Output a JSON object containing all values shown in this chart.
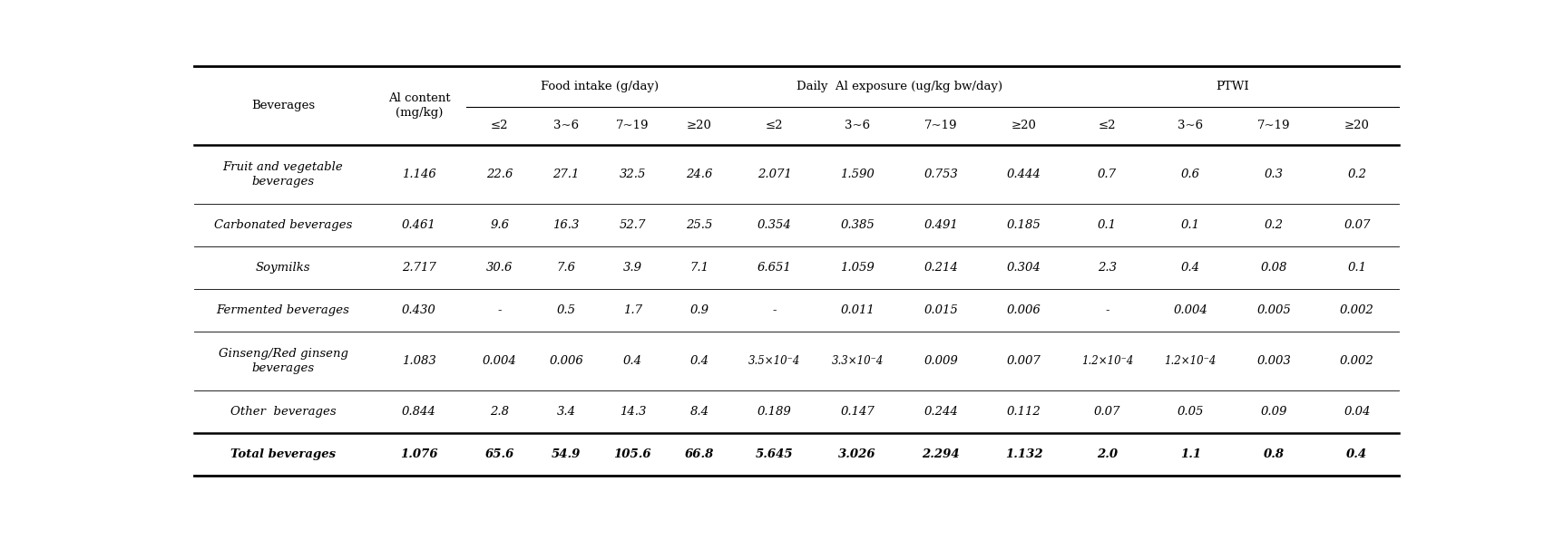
{
  "figsize": [
    17.13,
    6.06
  ],
  "dpi": 100,
  "col_widths": [
    1.6,
    0.85,
    0.6,
    0.6,
    0.6,
    0.6,
    0.75,
    0.75,
    0.75,
    0.75,
    0.75,
    0.75,
    0.75,
    0.75
  ],
  "rows": [
    [
      "Fruit and vegetable\nbeverages",
      "1.146",
      "22.6",
      "27.1",
      "32.5",
      "24.6",
      "2.071",
      "1.590",
      "0.753",
      "0.444",
      "0.7",
      "0.6",
      "0.3",
      "0.2"
    ],
    [
      "Carbonated beverages",
      "0.461",
      "9.6",
      "16.3",
      "52.7",
      "25.5",
      "0.354",
      "0.385",
      "0.491",
      "0.185",
      "0.1",
      "0.1",
      "0.2",
      "0.07"
    ],
    [
      "Soymilks",
      "2.717",
      "30.6",
      "7.6",
      "3.9",
      "7.1",
      "6.651",
      "1.059",
      "0.214",
      "0.304",
      "2.3",
      "0.4",
      "0.08",
      "0.1"
    ],
    [
      "Fermented beverages",
      "0.430",
      "-",
      "0.5",
      "1.7",
      "0.9",
      "-",
      "0.011",
      "0.015",
      "0.006",
      "-",
      "0.004",
      "0.005",
      "0.002"
    ],
    [
      "Ginseng/Red ginseng\nbeverages",
      "1.083",
      "0.004",
      "0.006",
      "0.4",
      "0.4",
      "3.5x10-4",
      "3.3x10-4",
      "0.009",
      "0.007",
      "1.2x10-4",
      "1.2x10-4",
      "0.003",
      "0.002"
    ],
    [
      "Other  beverages",
      "0.844",
      "2.8",
      "3.4",
      "14.3",
      "8.4",
      "0.189",
      "0.147",
      "0.244",
      "0.112",
      "0.07",
      "0.05",
      "0.09",
      "0.04"
    ],
    [
      "Total beverages",
      "1.076",
      "65.6",
      "54.9",
      "105.6",
      "66.8",
      "5.645",
      "3.026",
      "2.294",
      "1.132",
      "2.0",
      "1.1",
      "0.8",
      "0.4"
    ]
  ],
  "two_line_rows": [
    0,
    4
  ],
  "bold_rows": [
    6
  ],
  "age_labels": [
    "≤2",
    "3~6",
    "7~19",
    "≥20"
  ],
  "group_labels": [
    "Food intake (g/day)",
    "Daily  Al exposure (ug/kg bw/day)",
    "PTWI"
  ],
  "group_col_starts": [
    2,
    6,
    10
  ],
  "group_col_ends": [
    5,
    9,
    13
  ],
  "base_fontsize": 9.5,
  "header_color": "white",
  "row_colors": [
    "white",
    "white",
    "white",
    "white",
    "white",
    "white",
    "white"
  ]
}
